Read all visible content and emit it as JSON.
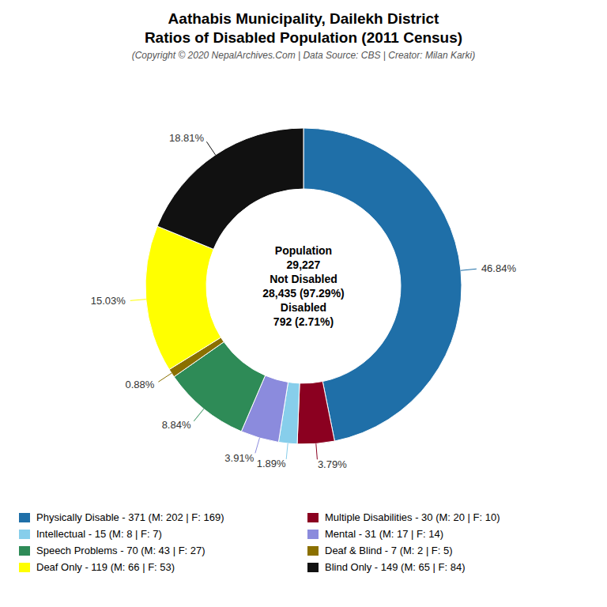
{
  "chart_data": {
    "type": "pie",
    "title": [
      "Aathabis Municipality, Dailekh District",
      "Ratios of Disabled Population (2011 Census)"
    ],
    "subtitle": "(Copyright © 2020 NepalArchives.Com | Data Source: CBS | Creator: Milan Karki)",
    "categories": [
      "Physically Disable - 371 (M: 202 | F: 169)",
      "Multiple Disabilities - 30 (M: 20 | F: 10)",
      "Intellectual - 15 (M: 8 | F: 7)",
      "Mental - 31 (M: 17 | F: 14)",
      "Speech Problems - 70 (M: 43 | F: 27)",
      "Deaf & Blind - 7 (M: 2 | F: 5)",
      "Deaf Only - 119 (M: 66 | F: 53)",
      "Blind Only - 149 (M: 65 | F: 84)"
    ],
    "values": [
      46.84,
      3.79,
      1.89,
      3.91,
      8.84,
      0.88,
      15.03,
      18.81
    ],
    "value_labels": [
      "46.84%",
      "3.79%",
      "1.89%",
      "3.91%",
      "8.84%",
      "0.88%",
      "15.03%",
      "18.81%"
    ],
    "colors": [
      "#1f6fa8",
      "#8b0020",
      "#87ceeb",
      "#8b8bdd",
      "#2e8b57",
      "#8b7000",
      "#ffff00",
      "#111111"
    ],
    "data_labels": true,
    "annotations": [
      "Population",
      "29,227",
      "Not Disabled",
      "28,435 (97.29%)",
      "Disabled",
      "792 (2.71%)"
    ]
  }
}
